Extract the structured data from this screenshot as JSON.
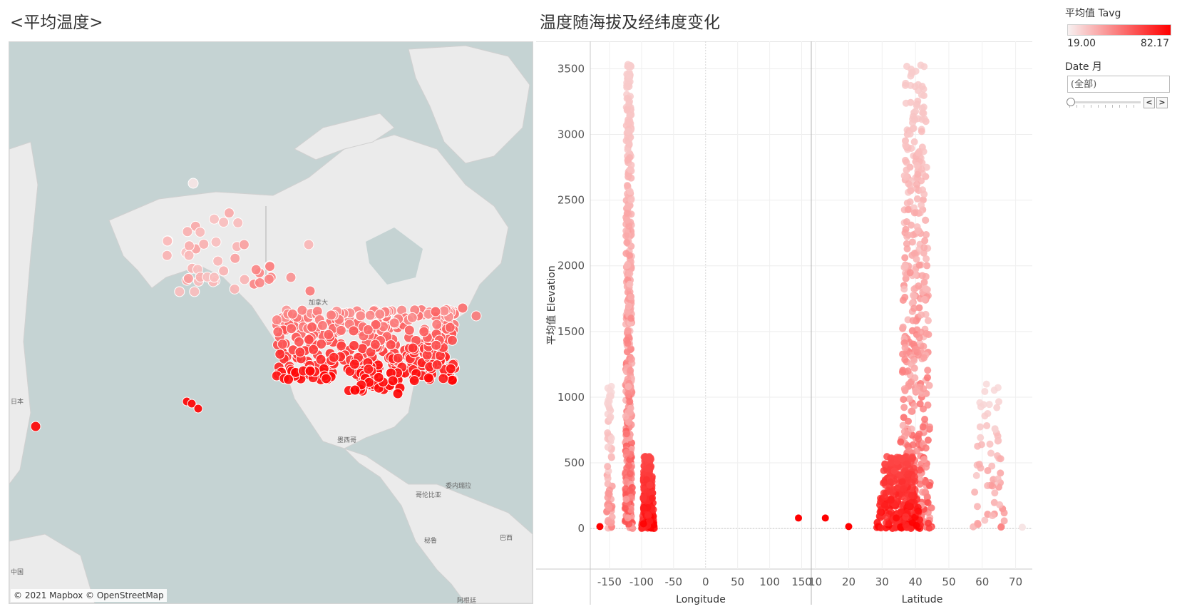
{
  "titles": {
    "map": "<平均温度>",
    "chart": "温度随海拔及经纬度变化"
  },
  "map": {
    "attribution": "© 2021 Mapbox © OpenStreetMap",
    "labels": [
      "加拿大",
      "墨西哥",
      "哥伦比亚",
      "委内瑞拉",
      "秘鲁",
      "巴西",
      "阿根廷",
      "日本",
      "中国"
    ],
    "water_color": "#c5d3d3",
    "land_color": "#ebebeb"
  },
  "legend": {
    "title": "平均值 Tavg",
    "min": "19.00",
    "max": "82.17",
    "low_color": "#f7f1f1",
    "high_color": "#ff0000"
  },
  "filter": {
    "title": "Date 月",
    "value": "(全部)",
    "prev_icon": "chevron-left-icon",
    "next_icon": "chevron-right-icon"
  },
  "chart_data": {
    "type": "scatter",
    "ylabel": "平均值 Elevation",
    "y_ticks": [
      "0",
      "500",
      "1000",
      "1500",
      "2000",
      "2500",
      "3000",
      "3500"
    ],
    "ylim": [
      -200,
      3600
    ],
    "panels": [
      {
        "xlabel": "Longitude",
        "x_ticks": [
          "-150",
          "-100",
          "-50",
          "0",
          "50",
          "100",
          "150"
        ],
        "xlim": [
          -180,
          165
        ],
        "clusters": [
          {
            "x_center": -120,
            "x_spread": 6,
            "y_min": 0,
            "y_max": 3550,
            "count": 420,
            "temp_min": 0.15,
            "temp_max": 0.65
          },
          {
            "x_center": -90,
            "x_spread": 10,
            "y_min": 0,
            "y_max": 550,
            "count": 300,
            "temp_min": 0.7,
            "temp_max": 1.0
          },
          {
            "x_center": -150,
            "x_spread": 5,
            "y_min": 0,
            "y_max": 1100,
            "count": 60,
            "temp_min": 0.1,
            "temp_max": 0.45
          }
        ],
        "outliers": [
          {
            "x": -165,
            "y": 15,
            "t": 1.0
          },
          {
            "x": 145,
            "y": 80,
            "t": 1.0
          }
        ]
      },
      {
        "xlabel": "Latitude",
        "x_ticks": [
          "10",
          "20",
          "30",
          "40",
          "50",
          "60",
          "70"
        ],
        "xlim": [
          9,
          75
        ],
        "clusters": [
          {
            "x_center": 40,
            "x_spread": 5,
            "y_min": 0,
            "y_max": 3550,
            "count": 420,
            "temp_min": 0.15,
            "temp_max": 0.65
          },
          {
            "x_center": 35,
            "x_spread": 7,
            "y_min": 0,
            "y_max": 550,
            "count": 300,
            "temp_min": 0.7,
            "temp_max": 1.0
          },
          {
            "x_center": 62,
            "x_spread": 5,
            "y_min": 0,
            "y_max": 1100,
            "count": 60,
            "temp_min": 0.1,
            "temp_max": 0.45
          }
        ],
        "outliers": [
          {
            "x": 13,
            "y": 80,
            "t": 1.0
          },
          {
            "x": 20,
            "y": 15,
            "t": 1.0
          },
          {
            "x": 72,
            "y": 10,
            "t": 0.05
          }
        ]
      }
    ]
  }
}
